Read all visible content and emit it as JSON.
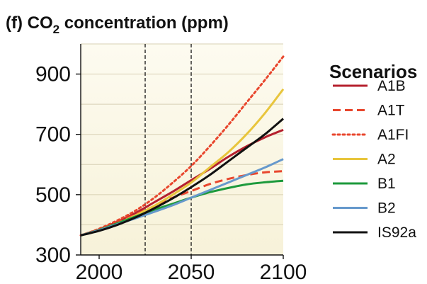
{
  "chart_data": {
    "type": "line",
    "title": {
      "prefix": "(f) CO",
      "subscript": "2",
      "suffix": " concentration (ppm)"
    },
    "xlim": [
      1990,
      2100
    ],
    "ylim": [
      300,
      1000
    ],
    "xticks": [
      2000,
      2050,
      2100
    ],
    "yticks": [
      300,
      500,
      700,
      900
    ],
    "vlines": [
      2025,
      2050
    ],
    "grid": "horizontal",
    "legend_title": "Scenarios",
    "legend_position": "right",
    "background_color": "#f7f2d9",
    "series": [
      {
        "name": "A1B",
        "color": "#b5202e",
        "dash": "solid",
        "x": [
          1990,
          2000,
          2010,
          2020,
          2030,
          2040,
          2050,
          2060,
          2070,
          2080,
          2090,
          2100
        ],
        "values": [
          365,
          385,
          410,
          440,
          475,
          510,
          548,
          585,
          625,
          660,
          690,
          715
        ]
      },
      {
        "name": "A1T",
        "color": "#e8462d",
        "dash": "dashed",
        "x": [
          1990,
          2000,
          2010,
          2020,
          2030,
          2040,
          2050,
          2060,
          2070,
          2080,
          2090,
          2100
        ],
        "values": [
          365,
          385,
          408,
          435,
          462,
          490,
          512,
          535,
          552,
          565,
          574,
          578
        ]
      },
      {
        "name": "A1FI",
        "color": "#e8462d",
        "dash": "dotted",
        "x": [
          1990,
          2000,
          2010,
          2020,
          2030,
          2040,
          2050,
          2060,
          2070,
          2080,
          2090,
          2100
        ],
        "values": [
          365,
          387,
          415,
          448,
          490,
          540,
          595,
          660,
          730,
          805,
          880,
          958
        ]
      },
      {
        "name": "A2",
        "color": "#e8c53c",
        "dash": "solid",
        "x": [
          1990,
          2000,
          2010,
          2020,
          2030,
          2040,
          2050,
          2060,
          2070,
          2080,
          2090,
          2100
        ],
        "values": [
          365,
          383,
          405,
          432,
          463,
          500,
          540,
          590,
          640,
          700,
          770,
          850
        ]
      },
      {
        "name": "B1",
        "color": "#1d9a3c",
        "dash": "solid",
        "x": [
          1990,
          2000,
          2010,
          2020,
          2030,
          2040,
          2050,
          2060,
          2070,
          2080,
          2090,
          2100
        ],
        "values": [
          365,
          383,
          405,
          428,
          450,
          470,
          490,
          508,
          522,
          534,
          541,
          546
        ]
      },
      {
        "name": "B2",
        "color": "#6699cc",
        "dash": "solid",
        "x": [
          1990,
          2000,
          2010,
          2020,
          2030,
          2040,
          2050,
          2060,
          2070,
          2080,
          2090,
          2100
        ],
        "values": [
          365,
          382,
          402,
          422,
          443,
          465,
          490,
          515,
          540,
          565,
          590,
          618
        ]
      },
      {
        "name": "IS92a",
        "color": "#111111",
        "dash": "solid",
        "x": [
          1990,
          2000,
          2010,
          2020,
          2030,
          2040,
          2050,
          2060,
          2070,
          2080,
          2090,
          2100
        ],
        "values": [
          365,
          380,
          400,
          425,
          455,
          488,
          525,
          565,
          610,
          655,
          700,
          752
        ]
      }
    ]
  }
}
